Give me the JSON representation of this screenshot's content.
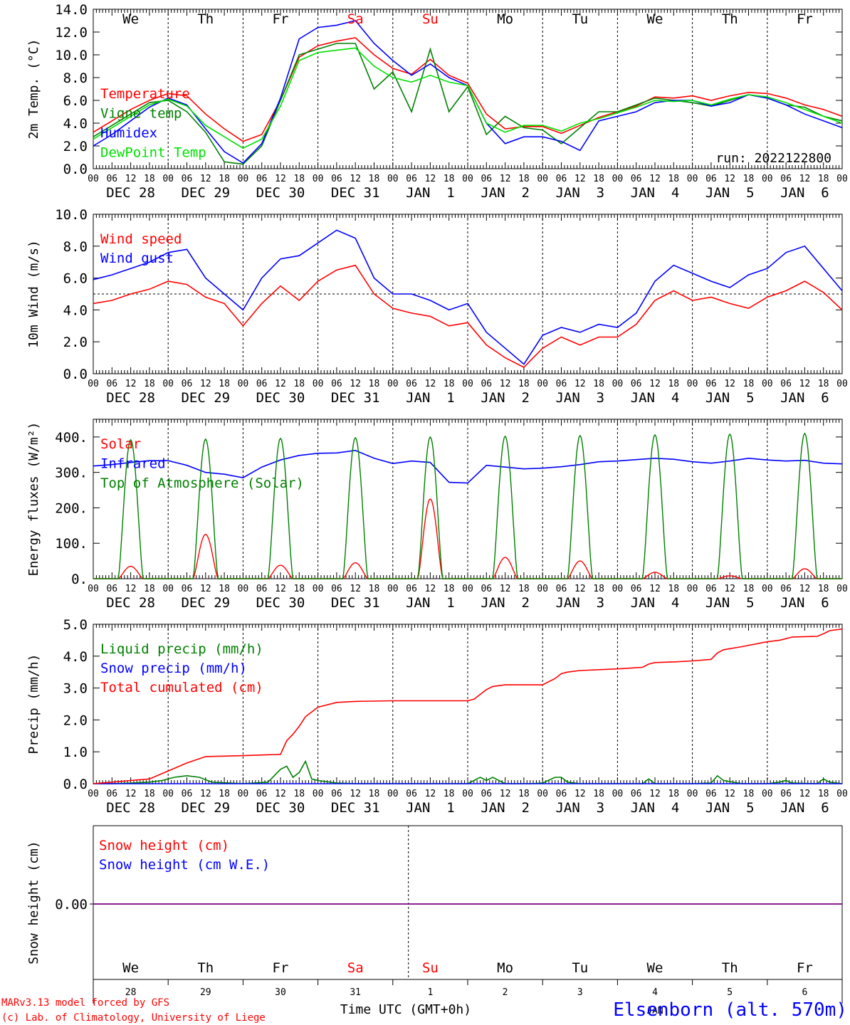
{
  "meta": {
    "run": "run: 2022122800",
    "credit_line1": "MARv3.13 model forced by GFS",
    "credit_line2": "(c) Lab. of Climatology, University of Liege",
    "station": "Elsenborn (alt. 570m)",
    "xlabel": "Time UTC (GMT+0h)",
    "month_label": "JAN"
  },
  "colors": {
    "red": "#ff0000",
    "green": "#008000",
    "lightgreen": "#00e000",
    "blue": "#0000ff",
    "purple": "#800080",
    "weekend": "#ff0000",
    "axis": "#000000"
  },
  "axis": {
    "hour_ticks": [
      "00",
      "06",
      "12",
      "18"
    ],
    "dates": [
      "DEC 28",
      "DEC 29",
      "DEC 30",
      "DEC 31",
      "JAN  1",
      "JAN  2",
      "JAN  3",
      "JAN  4",
      "JAN  5",
      "JAN  6"
    ],
    "weekdays": [
      {
        "label": "We",
        "weekend": false
      },
      {
        "label": "Th",
        "weekend": false
      },
      {
        "label": "Fr",
        "weekend": false
      },
      {
        "label": "Sa",
        "weekend": true
      },
      {
        "label": "Su",
        "weekend": true
      },
      {
        "label": "Mo",
        "weekend": false
      },
      {
        "label": "Tu",
        "weekend": false
      },
      {
        "label": "We",
        "weekend": false
      },
      {
        "label": "Th",
        "weekend": false
      },
      {
        "label": "Fr",
        "weekend": false
      }
    ],
    "day_numbers": [
      "28",
      "29",
      "30",
      "31",
      "1",
      "2",
      "3",
      "4",
      "5",
      "6"
    ]
  },
  "chart_data": [
    {
      "id": "temp",
      "type": "line",
      "ylabel": "2m Temp. (°C)",
      "ylim": [
        0,
        14
      ],
      "yticks": [
        "0.0",
        "2.0",
        "4.0",
        "6.0",
        "8.0",
        "10.0",
        "12.0",
        "14.0"
      ],
      "xlim_hours": [
        0,
        240
      ],
      "series": [
        {
          "name": "Temperature",
          "color": "#ff0000",
          "x": [
            0,
            6,
            12,
            18,
            24,
            30,
            36,
            42,
            48,
            54,
            60,
            66,
            72,
            78,
            84,
            90,
            96,
            102,
            108,
            114,
            120,
            126,
            132,
            138,
            144,
            150,
            156,
            162,
            168,
            174,
            180,
            186,
            192,
            198,
            204,
            210,
            216,
            222,
            228,
            234,
            240
          ],
          "y": [
            3.2,
            4.2,
            5.2,
            6.0,
            6.6,
            6.4,
            4.8,
            3.5,
            2.4,
            3.0,
            6.0,
            9.8,
            10.8,
            11.2,
            11.5,
            10.0,
            8.8,
            8.3,
            9.6,
            8.2,
            7.5,
            4.8,
            3.5,
            3.7,
            3.7,
            3.1,
            3.8,
            4.5,
            5.0,
            5.5,
            6.3,
            6.2,
            6.4,
            6.0,
            6.4,
            6.7,
            6.6,
            6.2,
            5.6,
            5.2,
            4.6
          ]
        },
        {
          "name": "Vigne temp",
          "color": "#008000",
          "x": [
            0,
            6,
            12,
            18,
            24,
            30,
            36,
            42,
            48,
            54,
            60,
            66,
            72,
            78,
            84,
            90,
            96,
            102,
            108,
            114,
            120,
            126,
            132,
            138,
            144,
            150,
            156,
            162,
            168,
            174,
            180,
            186,
            192,
            198,
            204,
            210,
            216,
            222,
            228,
            234,
            240
          ],
          "y": [
            2.8,
            3.8,
            4.8,
            5.8,
            6.0,
            5.0,
            3.2,
            0.6,
            0.4,
            2.0,
            6.0,
            10.0,
            10.5,
            11.0,
            11.0,
            7.0,
            8.5,
            5.0,
            10.5,
            5.0,
            7.2,
            3.0,
            4.6,
            3.6,
            3.4,
            2.2,
            3.6,
            5.0,
            5.0,
            5.6,
            6.2,
            6.0,
            5.8,
            5.5,
            6.0,
            6.5,
            6.2,
            5.6,
            5.4,
            4.6,
            4.2
          ]
        },
        {
          "name": "Humidex",
          "color": "#0000ff",
          "x": [
            0,
            6,
            12,
            18,
            24,
            30,
            36,
            42,
            48,
            54,
            60,
            66,
            72,
            78,
            84,
            90,
            96,
            102,
            108,
            114,
            120,
            126,
            132,
            138,
            144,
            150,
            156,
            162,
            168,
            174,
            180,
            186,
            192,
            198,
            204,
            210,
            216,
            222,
            228,
            234,
            240
          ],
          "y": [
            2.0,
            3.0,
            4.2,
            5.4,
            6.2,
            5.6,
            3.5,
            1.5,
            0.5,
            2.2,
            6.2,
            11.4,
            12.4,
            12.6,
            13.0,
            11.0,
            9.5,
            8.2,
            9.2,
            8.0,
            7.3,
            4.0,
            2.2,
            2.8,
            2.8,
            2.4,
            1.6,
            4.2,
            4.6,
            5.0,
            5.8,
            6.0,
            6.0,
            5.5,
            5.8,
            6.5,
            6.2,
            5.6,
            4.8,
            4.2,
            3.6
          ]
        },
        {
          "name": "DewPoint Temp",
          "color": "#00e000",
          "x": [
            0,
            6,
            12,
            18,
            24,
            30,
            36,
            42,
            48,
            54,
            60,
            66,
            72,
            78,
            84,
            90,
            96,
            102,
            108,
            114,
            120,
            126,
            132,
            138,
            144,
            150,
            156,
            162,
            168,
            174,
            180,
            186,
            192,
            198,
            204,
            210,
            216,
            222,
            228,
            234,
            240
          ],
          "y": [
            2.6,
            3.6,
            4.6,
            5.6,
            6.1,
            5.5,
            3.8,
            2.8,
            1.8,
            2.6,
            5.5,
            9.5,
            10.2,
            10.4,
            10.6,
            9.0,
            8.0,
            7.6,
            8.2,
            7.6,
            7.3,
            4.0,
            3.2,
            3.8,
            3.8,
            3.3,
            4.0,
            4.4,
            4.9,
            5.4,
            6.0,
            5.9,
            6.0,
            5.6,
            6.1,
            6.5,
            6.3,
            5.8,
            5.2,
            4.6,
            4.0
          ]
        }
      ]
    },
    {
      "id": "wind",
      "type": "line",
      "ylabel": "10m Wind (m/s)",
      "ylim": [
        0,
        10
      ],
      "yticks": [
        "0.0",
        "2.0",
        "4.0",
        "6.0",
        "8.0",
        "10.0"
      ],
      "xlim_hours": [
        0,
        240
      ],
      "reference_line": 5.0,
      "series": [
        {
          "name": "Wind speed",
          "color": "#ff0000",
          "x": [
            0,
            6,
            12,
            18,
            24,
            30,
            36,
            42,
            48,
            54,
            60,
            66,
            72,
            78,
            84,
            90,
            96,
            102,
            108,
            114,
            120,
            126,
            132,
            138,
            144,
            150,
            156,
            162,
            168,
            174,
            180,
            186,
            192,
            198,
            204,
            210,
            216,
            222,
            228,
            234,
            240
          ],
          "y": [
            4.4,
            4.6,
            5.0,
            5.3,
            5.8,
            5.6,
            4.8,
            4.4,
            3.0,
            4.4,
            5.5,
            4.6,
            5.8,
            6.5,
            6.8,
            5.0,
            4.1,
            3.8,
            3.6,
            3.0,
            3.2,
            1.8,
            1.0,
            0.4,
            1.6,
            2.3,
            1.8,
            2.3,
            2.3,
            3.1,
            4.6,
            5.2,
            4.6,
            4.8,
            4.4,
            4.1,
            4.8,
            5.2,
            5.8,
            5.1,
            4.0
          ]
        },
        {
          "name": "Wind gust",
          "color": "#0000ff",
          "x": [
            0,
            6,
            12,
            18,
            24,
            30,
            36,
            42,
            48,
            54,
            60,
            66,
            72,
            78,
            84,
            90,
            96,
            102,
            108,
            114,
            120,
            126,
            132,
            138,
            144,
            150,
            156,
            162,
            168,
            174,
            180,
            186,
            192,
            198,
            204,
            210,
            216,
            222,
            228,
            234,
            240
          ],
          "y": [
            5.9,
            6.2,
            6.6,
            7.0,
            7.6,
            7.8,
            6.0,
            5.0,
            4.0,
            6.0,
            7.2,
            7.4,
            8.2,
            9.0,
            8.5,
            6.0,
            5.0,
            5.0,
            4.6,
            4.0,
            4.4,
            2.6,
            1.6,
            0.6,
            2.4,
            2.9,
            2.6,
            3.1,
            2.9,
            3.8,
            5.8,
            6.8,
            6.3,
            5.8,
            5.4,
            6.2,
            6.6,
            7.6,
            8.0,
            6.6,
            5.2
          ]
        }
      ]
    },
    {
      "id": "energy",
      "type": "line",
      "ylabel": "Energy fluxes (W/m²)",
      "ylim": [
        0,
        450
      ],
      "yticks": [
        "0.",
        "100.",
        "200.",
        "300.",
        "400."
      ],
      "ytick_values": [
        0,
        100,
        200,
        300,
        400
      ],
      "xlim_hours": [
        0,
        240
      ],
      "daylight_hours": [
        8,
        16
      ],
      "series": [
        {
          "name": "Solar",
          "color": "#ff0000",
          "daily_peak": [
            35,
            125,
            38,
            45,
            225,
            60,
            50,
            18,
            8,
            28
          ]
        },
        {
          "name": "Infrared",
          "color": "#0000ff",
          "x": [
            0,
            6,
            12,
            18,
            24,
            30,
            36,
            42,
            48,
            54,
            60,
            66,
            72,
            78,
            84,
            90,
            96,
            102,
            108,
            114,
            120,
            126,
            132,
            138,
            144,
            150,
            156,
            162,
            168,
            174,
            180,
            186,
            192,
            198,
            204,
            210,
            216,
            222,
            228,
            234,
            240
          ],
          "y": [
            318,
            322,
            328,
            333,
            333,
            320,
            300,
            295,
            285,
            315,
            335,
            348,
            354,
            355,
            362,
            340,
            325,
            332,
            328,
            272,
            270,
            320,
            315,
            310,
            312,
            316,
            322,
            330,
            332,
            336,
            340,
            337,
            330,
            326,
            332,
            340,
            335,
            332,
            334,
            326,
            324
          ]
        },
        {
          "name": "Top of Atmosphere (Solar)",
          "color": "#008000",
          "daily_peak": [
            392,
            394,
            396,
            398,
            400,
            402,
            404,
            406,
            408,
            410
          ]
        }
      ]
    },
    {
      "id": "precip",
      "type": "line",
      "ylabel": "Precip (mm/h)",
      "ylim": [
        0,
        5
      ],
      "yticks": [
        "0.0",
        "1.0",
        "2.0",
        "3.0",
        "4.0",
        "5.0"
      ],
      "xlim_hours": [
        0,
        240
      ],
      "series": [
        {
          "name": "Liquid precip (mm/h)",
          "color": "#008000",
          "x": [
            0,
            6,
            12,
            18,
            22,
            26,
            30,
            34,
            38,
            48,
            56,
            60,
            62,
            64,
            66,
            68,
            70,
            72,
            78,
            84,
            96,
            120,
            124,
            126,
            128,
            132,
            140,
            144,
            148,
            150,
            152,
            156,
            168,
            176,
            178,
            180,
            192,
            198,
            200,
            202,
            208,
            216,
            220,
            222,
            224,
            232,
            234,
            236,
            240
          ],
          "y": [
            0,
            0,
            0.02,
            0.05,
            0.1,
            0.2,
            0.25,
            0.2,
            0.05,
            0,
            0.05,
            0.45,
            0.55,
            0.2,
            0.35,
            0.7,
            0.15,
            0.1,
            0.02,
            0,
            0,
            0,
            0.2,
            0.1,
            0.2,
            0,
            0,
            0.02,
            0.2,
            0.2,
            0.05,
            0,
            0,
            0,
            0.15,
            0,
            0,
            0.02,
            0.25,
            0.1,
            0,
            0,
            0.05,
            0.1,
            0.02,
            0,
            0.15,
            0.05,
            0
          ]
        },
        {
          "name": "Snow precip (mm/h)",
          "color": "#0000ff",
          "x": [
            0,
            240
          ],
          "y": [
            0,
            0
          ]
        },
        {
          "name": "Total cumulated (cm)",
          "color": "#ff0000",
          "x": [
            0,
            6,
            12,
            18,
            24,
            30,
            36,
            48,
            60,
            62,
            64,
            66,
            68,
            70,
            72,
            78,
            84,
            96,
            108,
            120,
            122,
            124,
            126,
            128,
            132,
            144,
            148,
            150,
            152,
            156,
            168,
            176,
            178,
            180,
            186,
            192,
            198,
            200,
            202,
            208,
            216,
            220,
            222,
            224,
            232,
            234,
            236,
            240
          ],
          "y": [
            0,
            0.05,
            0.1,
            0.15,
            0.4,
            0.65,
            0.85,
            0.88,
            0.92,
            1.35,
            1.55,
            1.8,
            2.1,
            2.25,
            2.4,
            2.55,
            2.58,
            2.6,
            2.6,
            2.6,
            2.65,
            2.8,
            2.95,
            3.05,
            3.1,
            3.1,
            3.3,
            3.45,
            3.5,
            3.55,
            3.6,
            3.65,
            3.75,
            3.8,
            3.82,
            3.85,
            3.9,
            4.1,
            4.2,
            4.3,
            4.45,
            4.5,
            4.55,
            4.6,
            4.62,
            4.7,
            4.8,
            4.85
          ]
        }
      ]
    },
    {
      "id": "snow",
      "type": "line",
      "ylabel": "Snow height (cm)",
      "yticks": [
        "0.00"
      ],
      "xlim_hours": [
        0,
        240
      ],
      "series": [
        {
          "name": "Snow height (cm)",
          "color": "#ff0000",
          "x": [
            0,
            240
          ],
          "y": [
            0,
            0
          ]
        },
        {
          "name": "Snow height (cm W.E.)",
          "color": "#0000ff",
          "x": [
            0,
            240
          ],
          "y": [
            0,
            0
          ]
        }
      ]
    }
  ]
}
